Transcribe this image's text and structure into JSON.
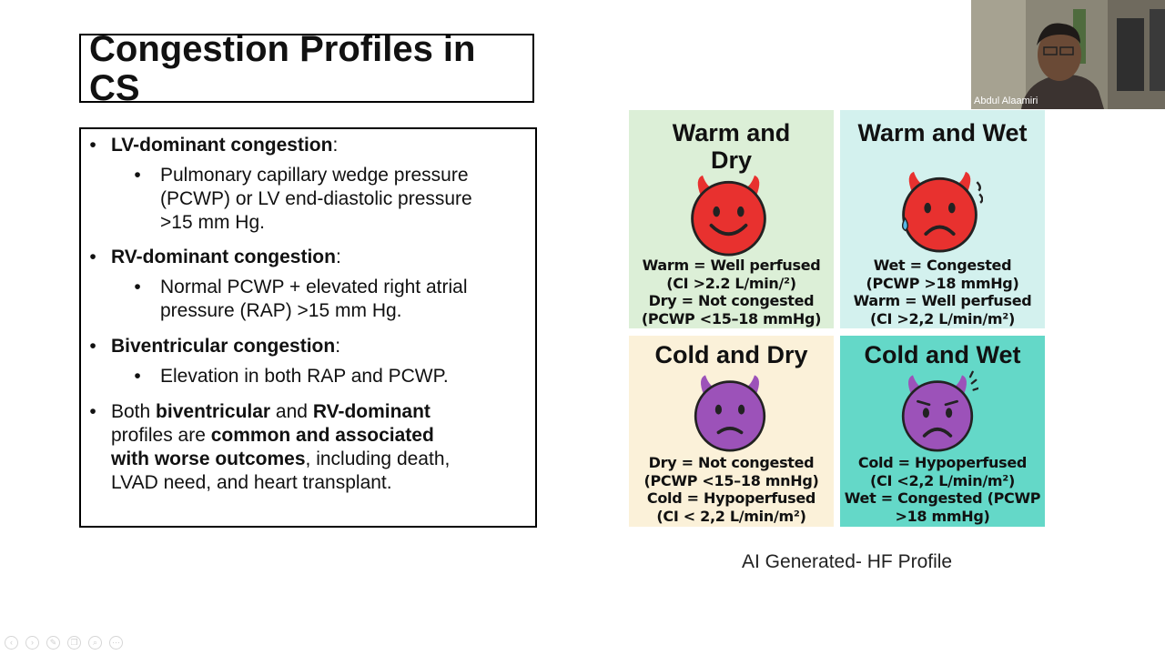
{
  "slide": {
    "title_line1": "Congestion Profiles in",
    "title_line2": "CS",
    "bullets": [
      {
        "bold": "LV-dominant congestion",
        "rest": ":",
        "sub": [
          "Pulmonary capillary wedge pressure",
          "(PCWP) or LV end-diastolic pressure",
          ">15 mm Hg."
        ]
      },
      {
        "bold": "RV-dominant congestion",
        "rest": ":",
        "sub": [
          "Normal PCWP + elevated right atrial",
          "pressure (RAP) >15 mm Hg."
        ]
      },
      {
        "bold": "Biventricular congestion",
        "rest": ":",
        "sub": [
          "Elevation in both RAP and PCWP."
        ]
      }
    ],
    "last_bullet": {
      "l1_a": "Both ",
      "l1_b": "biventricular",
      "l1_c": " and ",
      "l1_d": "RV-dominant",
      "l2_a": "profiles are ",
      "l2_b": "common and associated",
      "l3_a": "with worse outcomes",
      "l3_b": ", including death,",
      "l4": "LVAD need, and heart transplant."
    },
    "bullet_glyph": "•",
    "caption": "AI Generated- HF Profile"
  },
  "profiles": [
    {
      "title_lines": [
        "Warm and",
        "Dry"
      ],
      "desc": [
        "Warm = Well perfused",
        "(CI >2.2 L/min/²)",
        "Dry = Not congested",
        "(PCWP <15–18 mmHg)"
      ],
      "bg": "#dcefd7",
      "face_color": "#e8312f",
      "mood": "happy"
    },
    {
      "title_lines": [
        "Warm and Wet"
      ],
      "desc": [
        "Wet = Congested",
        "(PCWP >18 mmHg)",
        "Warm = Well perfused",
        "(CI >2,2 L/min/m²)"
      ],
      "bg": "#d3f1ee",
      "face_color": "#e8312f",
      "mood": "sad-sweat"
    },
    {
      "title_lines": [
        "Cold and Dry"
      ],
      "desc": [
        "Dry = Not congested",
        "(PCWP <15–18 mnHg)",
        "Cold = Hypoperfused",
        "(CI < 2,2 L/min/m²)"
      ],
      "bg": "#fbf1d9",
      "face_color": "#9c52b9",
      "mood": "frown"
    },
    {
      "title_lines": [
        "Cold and Wet"
      ],
      "desc": [
        "Cold = Hypoperfused",
        "(CI <2,2 L/min/m²)",
        "Wet = Congested (PCWP",
        ">18 mmHg)"
      ],
      "bg": "#64d8c8",
      "face_color": "#9c52b9",
      "mood": "worried"
    }
  ],
  "video": {
    "participant_name": "Abdul Alaamiri"
  },
  "toolbar": {
    "icons": [
      "arrow-left-icon",
      "arrow-right-icon",
      "pen-icon",
      "copy-icon",
      "zoom-icon",
      "more-icon"
    ],
    "glyphs": [
      "‹",
      "›",
      "✎",
      "❐",
      "⌕",
      "⋯"
    ]
  }
}
